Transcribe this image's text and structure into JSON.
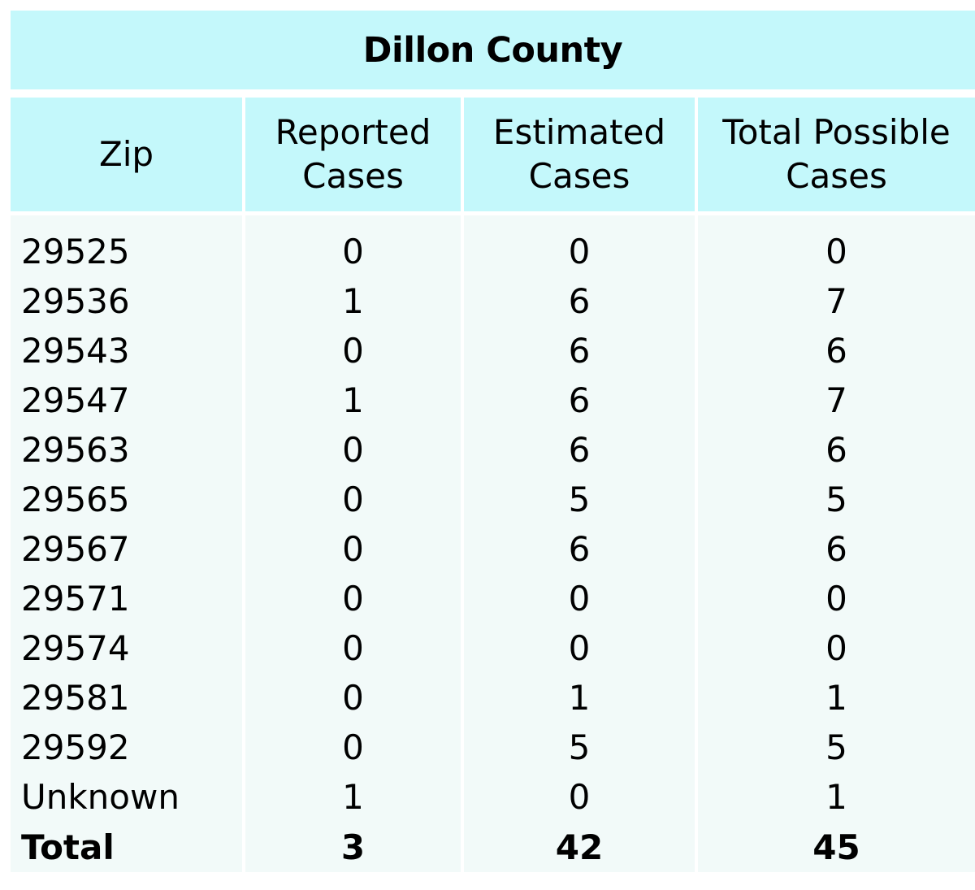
{
  "chart_data": {
    "type": "table",
    "title": "Dillon County",
    "columns": [
      "Zip",
      "Reported Cases",
      "Estimated Cases",
      "Total Possible Cases"
    ],
    "column_header_lines": [
      [
        "Zip"
      ],
      [
        "Reported",
        "Cases"
      ],
      [
        "Estimated",
        "Cases"
      ],
      [
        "Total Possible",
        "Cases"
      ]
    ],
    "rows": [
      [
        "29525",
        "0",
        "0",
        "0"
      ],
      [
        "29536",
        "1",
        "6",
        "7"
      ],
      [
        "29543",
        "0",
        "6",
        "6"
      ],
      [
        "29547",
        "1",
        "6",
        "7"
      ],
      [
        "29563",
        "0",
        "6",
        "6"
      ],
      [
        "29565",
        "0",
        "5",
        "5"
      ],
      [
        "29567",
        "0",
        "6",
        "6"
      ],
      [
        "29571",
        "0",
        "0",
        "0"
      ],
      [
        "29574",
        "0",
        "0",
        "0"
      ],
      [
        "29581",
        "0",
        "1",
        "1"
      ],
      [
        "29592",
        "0",
        "5",
        "5"
      ],
      [
        "Unknown",
        "1",
        "0",
        "1"
      ]
    ],
    "total_row": [
      "Total",
      "3",
      "42",
      "45"
    ],
    "colors": {
      "header_background": "#c4f8fb",
      "body_background": "#f2faf9",
      "separator": "#ffffff"
    }
  }
}
